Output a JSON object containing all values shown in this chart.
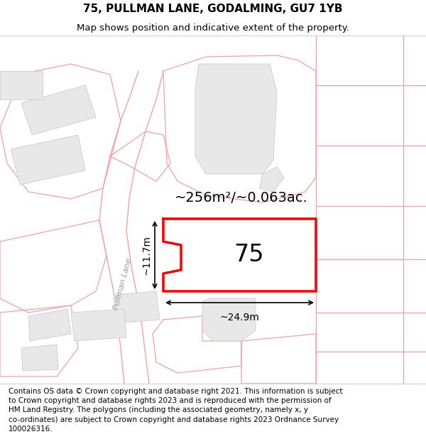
{
  "title": "75, PULLMAN LANE, GODALMING, GU7 1YB",
  "subtitle": "Map shows position and indicative extent of the property.",
  "footer": "Contains OS data © Crown copyright and database right 2021. This information is subject\nto Crown copyright and database rights 2023 and is reproduced with the permission of\nHM Land Registry. The polygons (including the associated geometry, namely x, y\nco-ordinates) are subject to Crown copyright and database rights 2023 Ordnance Survey\n100026316.",
  "map_bg": "#ffffff",
  "header_bg": "#ffffff",
  "footer_bg": "#ffffff",
  "road_label": "Pullman Lane",
  "area_label": "~256m²/~0.063ac.",
  "number_label": "75",
  "width_label": "~24.9m",
  "height_label": "~11.7m",
  "title_fontsize": 11,
  "subtitle_fontsize": 9.5,
  "footer_fontsize": 7.5,
  "road_label_fontsize": 8,
  "area_label_fontsize": 14,
  "number_label_fontsize": 24,
  "measurement_fontsize": 10,
  "property_color": "#ff0000",
  "outline_color": "#f5a0a0",
  "building_fill": "#e8e8e8",
  "building_edge": "#cccccc",
  "map_border_color": "#cccccc",
  "header_line_color": "#cccccc",
  "footer_line_color": "#cccccc"
}
